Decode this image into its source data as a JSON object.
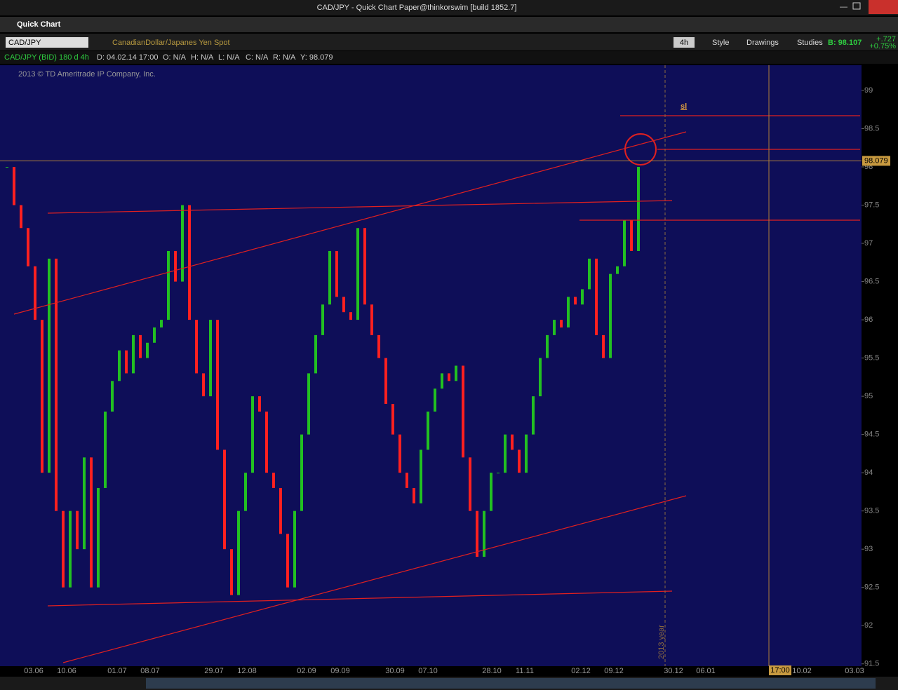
{
  "window_title": "CAD/JPY - Quick Chart Paper@thinkorswim [build 1852.7]",
  "panel_title": "Quick Chart",
  "toolbar": {
    "symbol": "CAD/JPY",
    "description": "CanadianDollar/Japanes Yen Spot",
    "aggregation": "4h",
    "style": "Style",
    "drawings": "Drawings",
    "studies": "Studies",
    "bid": "B: 98.107",
    "change": "+.727",
    "change_pct": "+0.75%"
  },
  "info_bar": [
    "CAD/JPY (BID) 180 d 4h",
    "D: 04.02.14 17:00",
    "O: N/A",
    "H: N/A",
    "L: N/A",
    "C: N/A",
    "R: N/A",
    "Y: 98.079"
  ],
  "copyright": "2013 © TD Ameritrade IP Company, Inc.",
  "chart_data": {
    "type": "candlestick",
    "values": [
      98.0,
      97.5,
      97.2,
      96.7,
      96.0,
      94.0,
      96.8,
      93.5,
      92.5,
      93.5,
      93.0,
      94.2,
      92.5,
      93.8,
      94.8,
      95.2,
      95.6,
      95.3,
      95.8,
      95.5,
      95.7,
      95.9,
      96.0,
      96.9,
      96.5,
      97.5,
      96.0,
      95.3,
      95.0,
      96.0,
      94.3,
      93.0,
      92.4,
      93.5,
      94.0,
      95.0,
      94.8,
      94.0,
      93.8,
      93.2,
      92.5,
      93.5,
      94.5,
      95.3,
      95.8,
      96.2,
      96.9,
      96.3,
      96.1,
      96.0,
      97.2,
      96.2,
      95.8,
      95.5,
      94.9,
      94.5,
      94.0,
      93.8,
      93.6,
      94.3,
      94.8,
      95.1,
      95.3,
      95.2,
      95.4,
      94.2,
      93.5,
      92.9,
      93.5,
      94.0,
      94.0,
      94.5,
      94.3,
      94.0,
      94.5,
      95.0,
      95.5,
      95.8,
      96.0,
      95.9,
      96.3,
      96.2,
      96.4,
      96.8,
      95.8,
      95.5,
      96.6,
      96.7,
      97.3,
      96.9,
      98.0
    ],
    "up_color": "#22c022",
    "down_color": "#ff2020",
    "ylim": [
      91.47,
      99.33
    ],
    "yticks": [
      99,
      98.5,
      98,
      97.5,
      97,
      96.5,
      96,
      95.5,
      95,
      94.5,
      94,
      93.5,
      93,
      92.5,
      92,
      91.5
    ],
    "x_tick_labels": [
      "03.06",
      "10.06",
      "01.07",
      "08.07",
      "29.07",
      "12.08",
      "02.09",
      "09.09",
      "30.09",
      "07.10",
      "28.10",
      "11.11",
      "02.12",
      "09.12",
      "30.12",
      "06.01",
      "10.02",
      "03.03"
    ],
    "last_price": 98.079,
    "last_price_label": "98.079",
    "cursor_time": "17:00",
    "year_marker": "2013 year",
    "annotation": "sl"
  }
}
